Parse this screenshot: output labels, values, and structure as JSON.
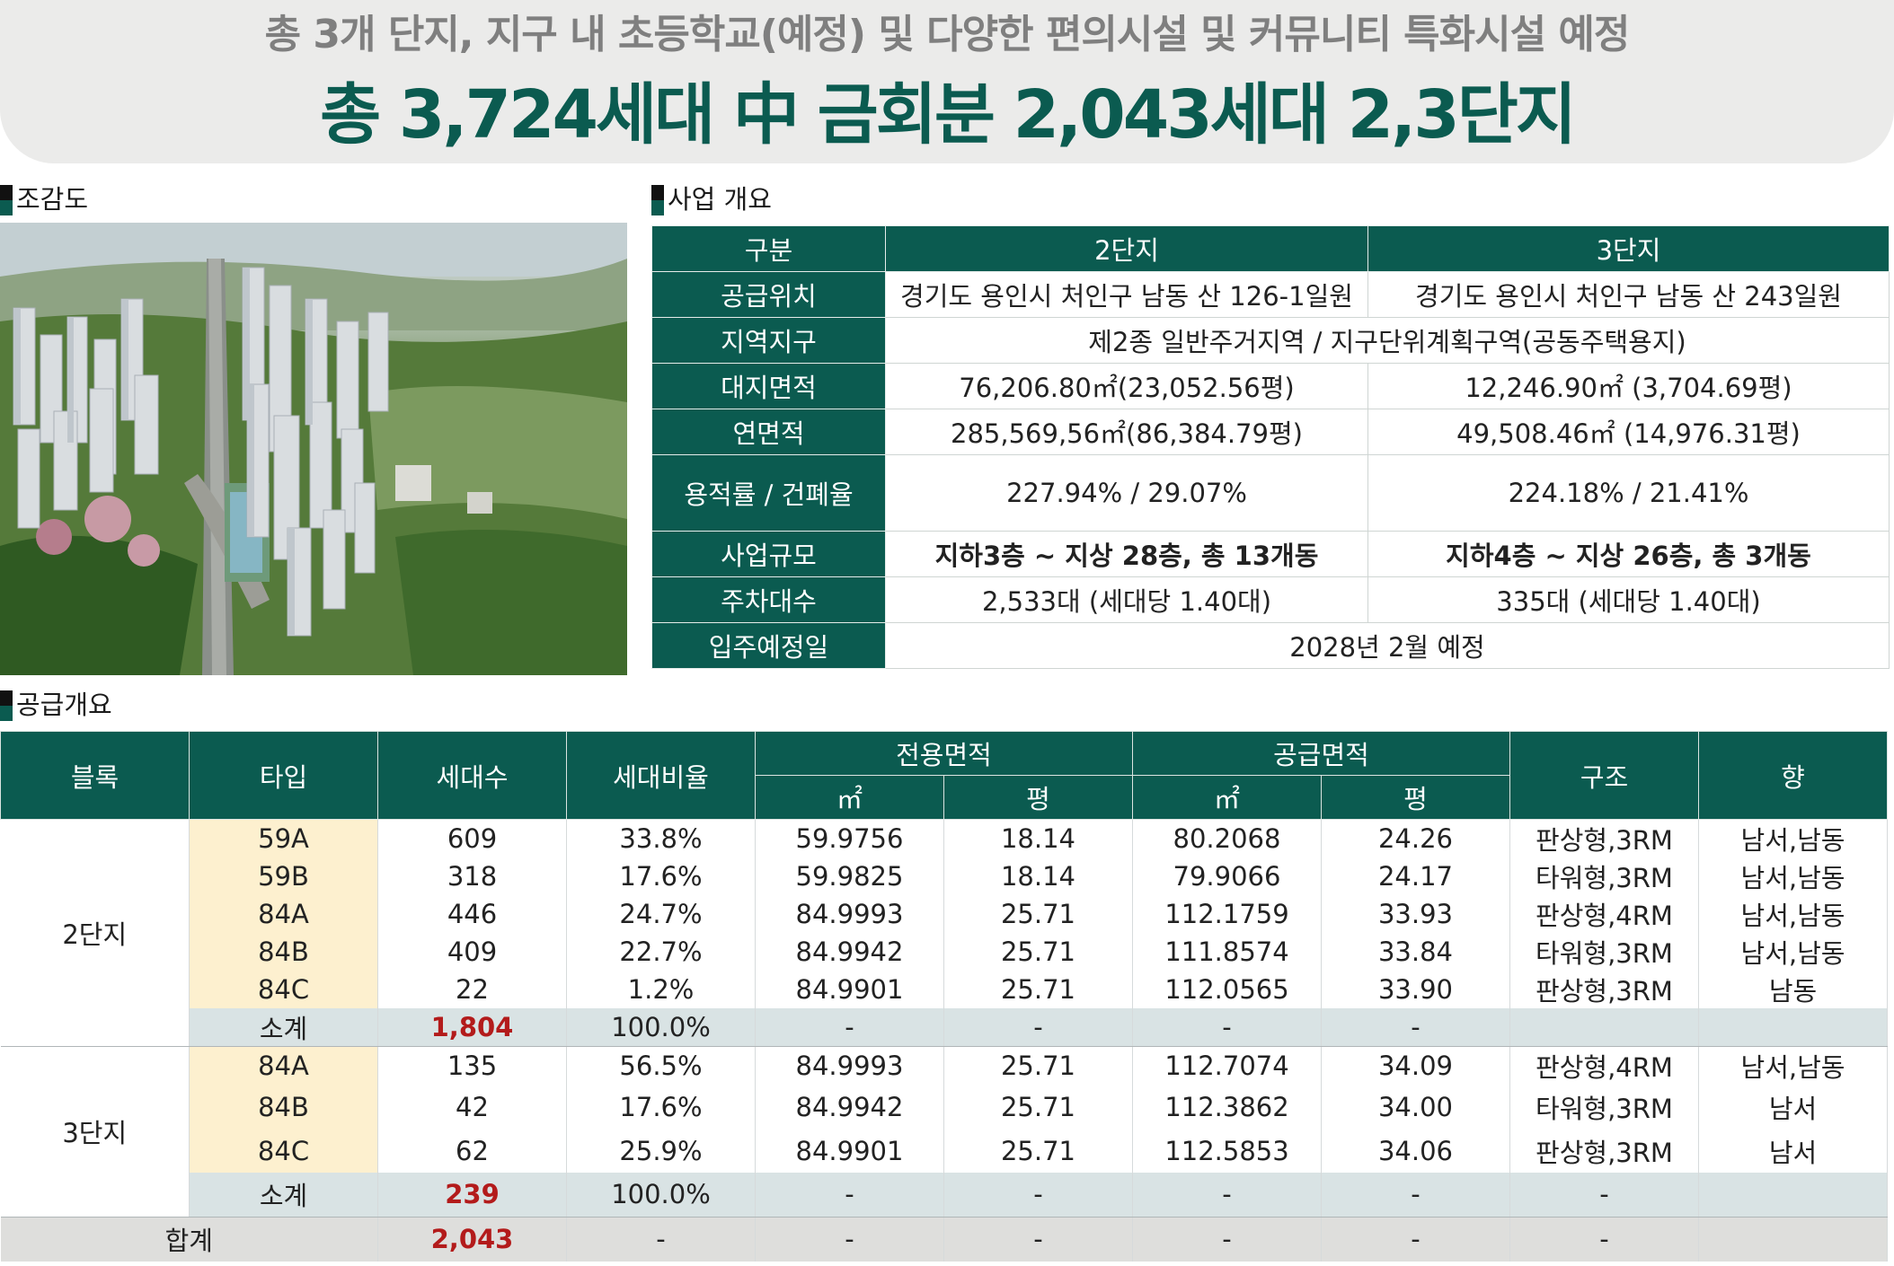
{
  "banner": {
    "subtitle": "총 3개 단지, 지구 내 초등학교(예정) 및 다양한 편의시설 및 커뮤니티 특화시설 예정",
    "title": "총 3,724세대 中 금회분 2,043세대 2,3단지"
  },
  "sections": {
    "aerial": "조감도",
    "overview": "사업 개요",
    "supply": "공급개요"
  },
  "colors": {
    "brand": "#0b5b50",
    "type_bg": "#fdf0cf",
    "subtotal_bg": "#d9e3e4",
    "total_bg": "#dededc",
    "highlight": "#b31b1b"
  },
  "overview": {
    "header": [
      "구분",
      "2단지",
      "3단지"
    ],
    "location": [
      "공급위치",
      "경기도 용인시 처인구 남동 산 126-1일원",
      "경기도 용인시 처인구 남동 산 243일원"
    ],
    "zone": [
      "지역지구",
      "제2종 일반주거지역 / 지구단위계획구역(공동주택용지)"
    ],
    "site_area": [
      "대지면적",
      "76,206.80㎡(23,052.56평)",
      "12,246.90㎡ (3,704.69평)"
    ],
    "floor_area": [
      "연면적",
      "285,569,56㎡(86,384.79평)",
      "49,508.46㎡ (14,976.31평)"
    ],
    "ratio": [
      "용적률 / 건폐율",
      "227.94% / 29.07%",
      "224.18% / 21.41%"
    ],
    "scale": [
      "사업규모",
      "지하3층 ~ 지상 28층, 총 13개동",
      "지하4층 ~ 지상 26층, 총 3개동"
    ],
    "parking": [
      "주차대수",
      "2,533대 (세대당 1.40대)",
      "335대 (세대당 1.40대)"
    ],
    "move_in": [
      "입주예정일",
      "2028년 2월 예정"
    ]
  },
  "supply": {
    "headers": {
      "block": "블록",
      "type": "타입",
      "units": "세대수",
      "ratio": "세대비율",
      "exclusive": "전용면적",
      "supply_area": "공급면적",
      "m2": "㎡",
      "pyeong": "평",
      "structure": "구조",
      "direction": "향"
    },
    "block2": "2단지",
    "block3": "3단지",
    "rows2": [
      [
        "59A",
        "609",
        "33.8%",
        "59.9756",
        "18.14",
        "80.2068",
        "24.26",
        "판상형,3RM",
        "남서,남동"
      ],
      [
        "59B",
        "318",
        "17.6%",
        "59.9825",
        "18.14",
        "79.9066",
        "24.17",
        "타워형,3RM",
        "남서,남동"
      ],
      [
        "84A",
        "446",
        "24.7%",
        "84.9993",
        "25.71",
        "112.1759",
        "33.93",
        "판상형,4RM",
        "남서,남동"
      ],
      [
        "84B",
        "409",
        "22.7%",
        "84.9942",
        "25.71",
        "111.8574",
        "33.84",
        "타워형,3RM",
        "남서,남동"
      ],
      [
        "84C",
        "22",
        "1.2%",
        "84.9901",
        "25.71",
        "112.0565",
        "33.90",
        "판상형,3RM",
        "남동"
      ]
    ],
    "sub2": [
      "소계",
      "1,804",
      "100.0%",
      "-",
      "-",
      "-",
      "-",
      "",
      ""
    ],
    "rows3": [
      [
        "84A",
        "135",
        "56.5%",
        "84.9993",
        "25.71",
        "112.7074",
        "34.09",
        "판상형,4RM",
        "남서,남동"
      ],
      [
        "84B",
        "42",
        "17.6%",
        "84.9942",
        "25.71",
        "112.3862",
        "34.00",
        "타워형,3RM",
        "남서"
      ],
      [
        "84C",
        "62",
        "25.9%",
        "84.9901",
        "25.71",
        "112.5853",
        "34.06",
        "판상형,3RM",
        "남서"
      ]
    ],
    "sub3": [
      "소계",
      "239",
      "100.0%",
      "-",
      "-",
      "-",
      "-",
      "-",
      ""
    ],
    "total": [
      "합계",
      "2,043",
      "-",
      "-",
      "-",
      "-",
      "-",
      "-",
      ""
    ]
  }
}
